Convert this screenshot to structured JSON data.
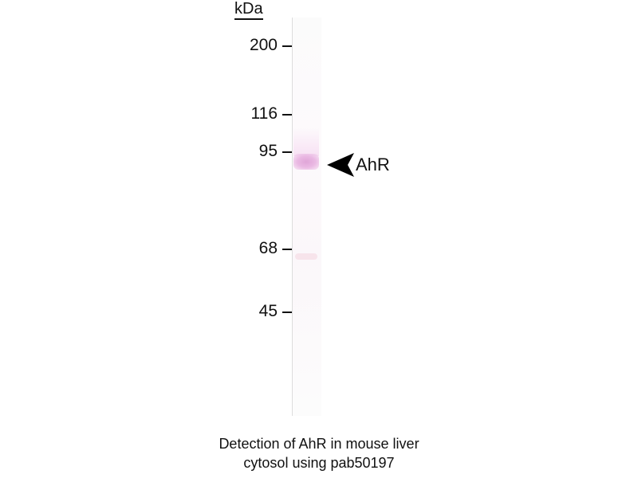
{
  "unit_label": "kDa",
  "markers": [
    {
      "label": "200",
      "kda": 200
    },
    {
      "label": "116",
      "kda": 116
    },
    {
      "label": "95",
      "kda": 95
    },
    {
      "label": "68",
      "kda": 68
    },
    {
      "label": "45",
      "kda": 45
    }
  ],
  "band_label": "AhR",
  "band_color": "#e0a5d8",
  "caption": {
    "line1": "Detection of AhR in mouse liver",
    "line2": "cytosol using pab50197"
  }
}
